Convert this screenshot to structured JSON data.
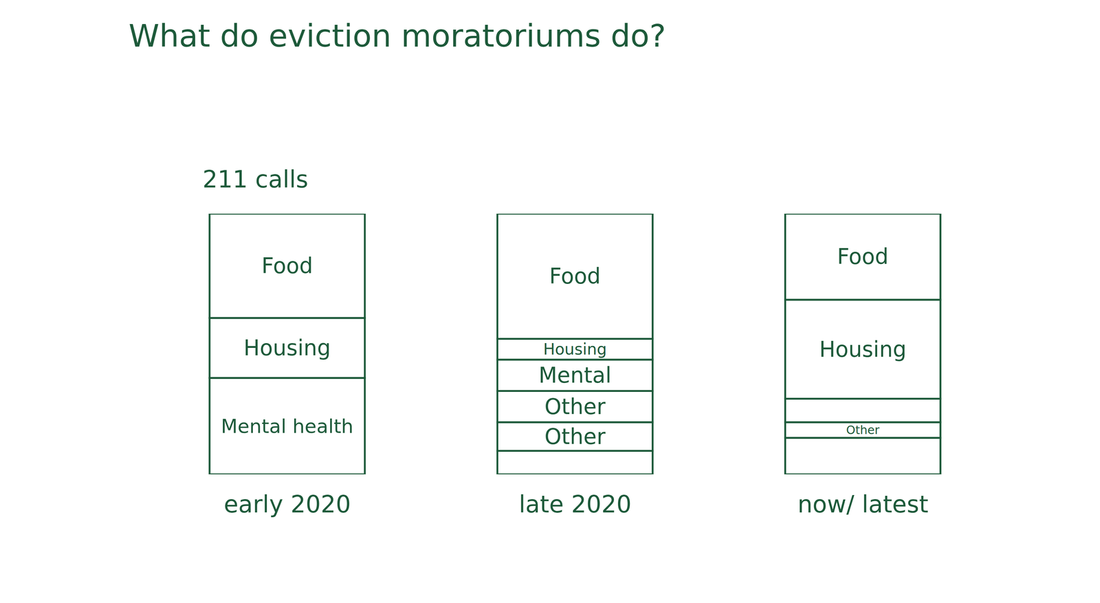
{
  "chart_data": {
    "type": "bar",
    "title": "What do eviction moratoriums do?",
    "annotations": [
      "211 calls"
    ],
    "stacked": true,
    "tick_labels": "x",
    "color": "#1d5a3a",
    "ylim": [
      0,
      100
    ],
    "categories": [
      "early 2020",
      "late 2020",
      "now/ latest"
    ],
    "columns": [
      {
        "category": "early 2020",
        "segments": [
          {
            "label": "Food",
            "value": 40
          },
          {
            "label": "Housing",
            "value": 23
          },
          {
            "label": "Mental health",
            "value": 37
          }
        ]
      },
      {
        "category": "late 2020",
        "segments": [
          {
            "label": "Food",
            "value": 48
          },
          {
            "label": "Housing",
            "value": 8
          },
          {
            "label": "Mental",
            "value": 12
          },
          {
            "label": "Other",
            "value": 12
          },
          {
            "label": "Other",
            "value": 11
          },
          {
            "label": null,
            "value": 9
          }
        ]
      },
      {
        "category": "now/ latest",
        "segments": [
          {
            "label": "Food",
            "value": 33
          },
          {
            "label": "Housing",
            "value": 38
          },
          {
            "label": null,
            "value": 9
          },
          {
            "label": "Other",
            "value": 6
          },
          {
            "label": null,
            "value": 14
          }
        ]
      }
    ]
  }
}
